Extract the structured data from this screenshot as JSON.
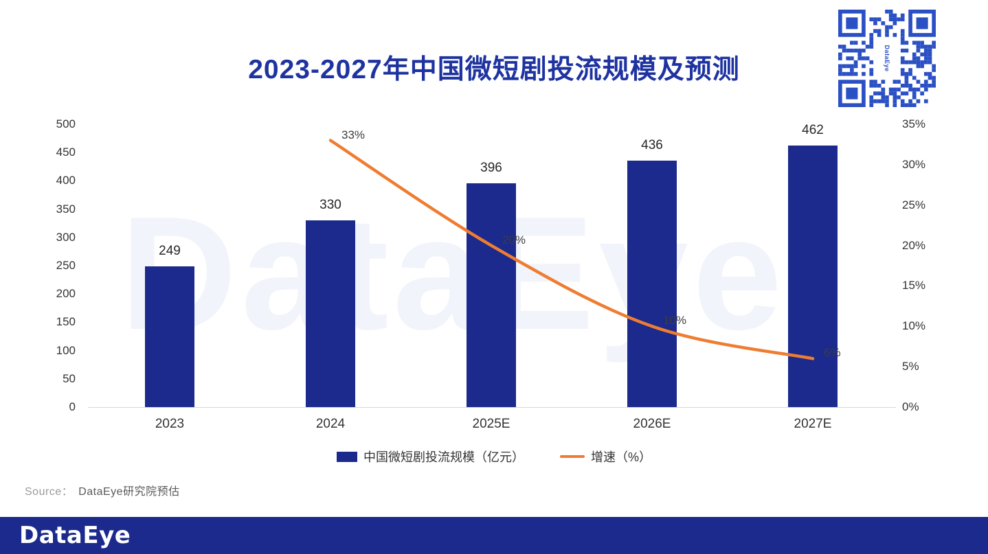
{
  "title": "2023-2027年中国微短剧投流规模及预测",
  "watermark": "DataEye",
  "qr": {
    "label": "DataEye"
  },
  "source": {
    "prefix": "Source：",
    "text": "DataEye研究院预估"
  },
  "footer": {
    "logo": "DataEye"
  },
  "colors": {
    "bar": "#1b2a8c",
    "line": "#ee7d31",
    "title": "#1f33a0",
    "footer": "#1b2a8c",
    "qr": "#2b50c4"
  },
  "chart_data": {
    "type": "bar",
    "categories": [
      "2023",
      "2024",
      "2025E",
      "2026E",
      "2027E"
    ],
    "series": [
      {
        "name": "中国微短剧投流规模（亿元）",
        "type": "bar",
        "axis": "left",
        "values": [
          249,
          330,
          396,
          436,
          462
        ]
      },
      {
        "name": "增速（%）",
        "type": "line",
        "axis": "right",
        "values": [
          null,
          33,
          20,
          10,
          6
        ],
        "labels": [
          "",
          "33%",
          "20%",
          "10%",
          "6%"
        ]
      }
    ],
    "left_axis": {
      "min": 0,
      "max": 500,
      "step": 50,
      "ticks": [
        "0",
        "50",
        "100",
        "150",
        "200",
        "250",
        "300",
        "350",
        "400",
        "450",
        "500"
      ]
    },
    "right_axis": {
      "min": 0,
      "max": 35,
      "step": 5,
      "ticks": [
        "0%",
        "5%",
        "10%",
        "15%",
        "20%",
        "25%",
        "30%",
        "35%"
      ]
    },
    "legend": [
      "中国微短剧投流规模（亿元）",
      "增速（%）"
    ],
    "title": "2023-2027年中国微短剧投流规模及预测",
    "grid": false,
    "legend_position": "bottom"
  }
}
